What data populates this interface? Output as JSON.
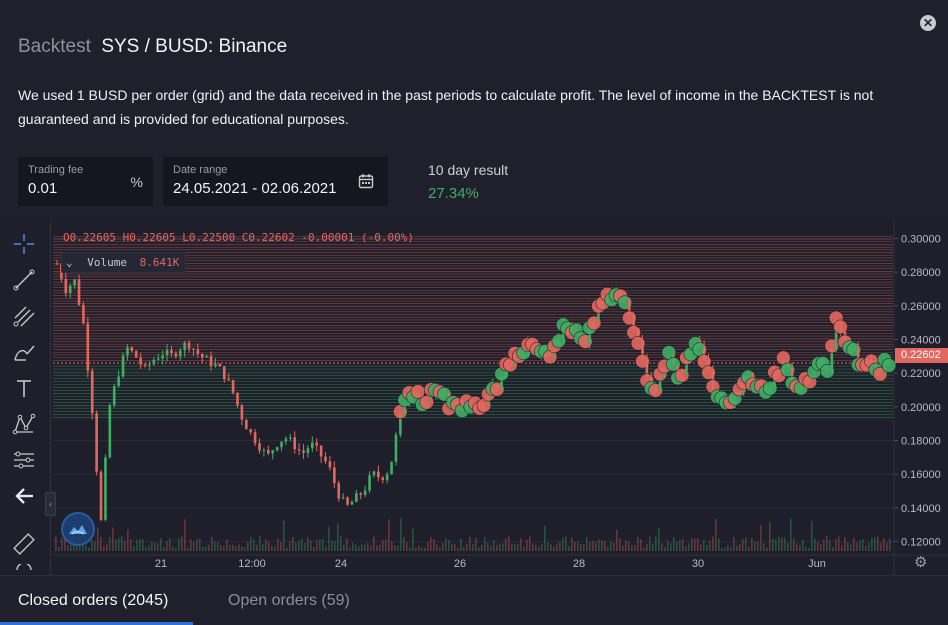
{
  "header": {
    "section": "Backtest",
    "pair_title": "SYS / BUSD: Binance",
    "description": "We used 1 BUSD per order (grid) and the data received in the past periods to calculate profit. The level of income in the BACKTEST is not guaranteed and is provided for educational purposes."
  },
  "form": {
    "trading_fee": {
      "label": "Trading fee",
      "value": "0.01",
      "unit": "%"
    },
    "date_range": {
      "label": "Date range",
      "value": "24.05.2021 - 02.06.2021",
      "icon": "calendar-icon"
    }
  },
  "result": {
    "label": "10 day result",
    "value": "27.34%",
    "color": "#3fae64"
  },
  "chart": {
    "legend": {
      "ohlc": "O0.22605  H0.22605  L0.22500  C0.22602  -0.00001 (-0.00%)",
      "volume_label": "Volume",
      "volume_value": "8.641K"
    },
    "last_price": "0.22602",
    "colors": {
      "up": "#3fae64",
      "down": "#e2675f",
      "grid_sell": "#e2675f",
      "grid_buy": "#3fae64",
      "background": "#1e1f2b"
    }
  },
  "toolbar": {
    "tools": [
      "crosshair-icon",
      "trend-line-icon",
      "fib-retracement-icon",
      "brush-icon",
      "text-tool-icon",
      "pattern-icon",
      "prediction-icon",
      "back-arrow-icon",
      "ruler-icon",
      "magnet-icon"
    ]
  },
  "tabs": {
    "closed": "Closed orders (2045)",
    "open": "Open orders (59)"
  },
  "chart_data": {
    "type": "candlestick",
    "x_tick_labels": [
      "21",
      "12:00",
      "24",
      "26",
      "28",
      "30",
      "Jun"
    ],
    "y_tick_labels": [
      "0.30000",
      "0.28000",
      "0.26000",
      "0.24000",
      "0.22000",
      "0.20000",
      "0.18000",
      "0.16000",
      "0.14000",
      "0.12000"
    ],
    "ylim": [
      0.115,
      0.305
    ],
    "price_path": [
      [
        0,
        0.285
      ],
      [
        2,
        0.27
      ],
      [
        4,
        0.275
      ],
      [
        6,
        0.25
      ],
      [
        8,
        0.2
      ],
      [
        10,
        0.13
      ],
      [
        12,
        0.2
      ],
      [
        14,
        0.22
      ],
      [
        16,
        0.235
      ],
      [
        18,
        0.23
      ],
      [
        20,
        0.222
      ],
      [
        22,
        0.228
      ],
      [
        24,
        0.232
      ],
      [
        26,
        0.23
      ],
      [
        28,
        0.235
      ],
      [
        30,
        0.238
      ],
      [
        32,
        0.232
      ],
      [
        34,
        0.228
      ],
      [
        36,
        0.225
      ],
      [
        38,
        0.22
      ],
      [
        40,
        0.21
      ],
      [
        42,
        0.195
      ],
      [
        44,
        0.185
      ],
      [
        46,
        0.178
      ],
      [
        48,
        0.17
      ],
      [
        50,
        0.178
      ],
      [
        52,
        0.182
      ],
      [
        54,
        0.178
      ],
      [
        56,
        0.172
      ],
      [
        58,
        0.178
      ],
      [
        60,
        0.172
      ],
      [
        62,
        0.165
      ],
      [
        64,
        0.15
      ],
      [
        66,
        0.14
      ],
      [
        68,
        0.145
      ],
      [
        70,
        0.15
      ],
      [
        72,
        0.16
      ],
      [
        74,
        0.158
      ],
      [
        76,
        0.163
      ],
      [
        78,
        0.19
      ],
      [
        80,
        0.21
      ],
      [
        82,
        0.208
      ],
      [
        84,
        0.205
      ],
      [
        86,
        0.212
      ],
      [
        88,
        0.208
      ],
      [
        90,
        0.2
      ],
      [
        92,
        0.203
      ],
      [
        94,
        0.2
      ],
      [
        96,
        0.202
      ],
      [
        98,
        0.205
      ],
      [
        100,
        0.212
      ],
      [
        102,
        0.22
      ],
      [
        104,
        0.228
      ],
      [
        106,
        0.232
      ],
      [
        108,
        0.24
      ],
      [
        110,
        0.233
      ],
      [
        112,
        0.228
      ],
      [
        114,
        0.24
      ],
      [
        116,
        0.252
      ],
      [
        118,
        0.245
      ],
      [
        120,
        0.238
      ],
      [
        122,
        0.245
      ],
      [
        124,
        0.258
      ],
      [
        126,
        0.268
      ],
      [
        128,
        0.266
      ],
      [
        130,
        0.262
      ],
      [
        132,
        0.245
      ],
      [
        134,
        0.222
      ],
      [
        136,
        0.208
      ],
      [
        138,
        0.22
      ],
      [
        140,
        0.232
      ],
      [
        142,
        0.218
      ],
      [
        144,
        0.228
      ],
      [
        146,
        0.238
      ],
      [
        148,
        0.225
      ],
      [
        150,
        0.21
      ],
      [
        152,
        0.2
      ],
      [
        154,
        0.205
      ],
      [
        156,
        0.21
      ],
      [
        158,
        0.218
      ],
      [
        160,
        0.215
      ],
      [
        162,
        0.21
      ],
      [
        164,
        0.22
      ],
      [
        166,
        0.228
      ],
      [
        168,
        0.215
      ],
      [
        170,
        0.21
      ],
      [
        172,
        0.22
      ],
      [
        174,
        0.225
      ],
      [
        176,
        0.222
      ],
      [
        178,
        0.252
      ],
      [
        180,
        0.238
      ],
      [
        182,
        0.232
      ],
      [
        184,
        0.228
      ],
      [
        186,
        0.225
      ],
      [
        188,
        0.222
      ],
      [
        190,
        0.226
      ]
    ]
  }
}
